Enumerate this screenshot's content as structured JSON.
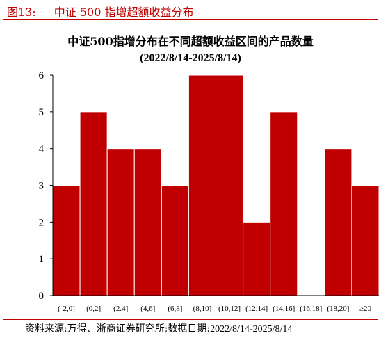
{
  "caption": {
    "number": "图13:",
    "text": "中证 500 指增超额收益分布"
  },
  "chart_data": {
    "type": "bar",
    "title": "中证500指增分布在不同超额收益区间的产品数量",
    "subtitle": "(2022/8/14-2025/8/14)",
    "categories": [
      "(-2,0]",
      "(0,2]",
      "(2.4]",
      "(4,6]",
      "(6,8]",
      "(8,10]",
      "(10,12]",
      "(12,14]",
      "(14,16]",
      "(16,18]",
      "(18,20]",
      "≥20"
    ],
    "values": [
      3,
      5,
      4,
      4,
      3,
      6,
      6,
      2,
      5,
      0,
      4,
      3
    ],
    "ylim": [
      0,
      6
    ],
    "yticks": [
      "0",
      "1",
      "2",
      "3",
      "4",
      "5",
      "6"
    ],
    "xlabel": "",
    "ylabel": "",
    "bar_color": "#c00000",
    "grid": false,
    "legend": "none"
  },
  "source": {
    "label": "资料来源:",
    "text": "万得、浙商证券研究所;数据日期:",
    "date": "2022/8/14-2025/8/14"
  }
}
